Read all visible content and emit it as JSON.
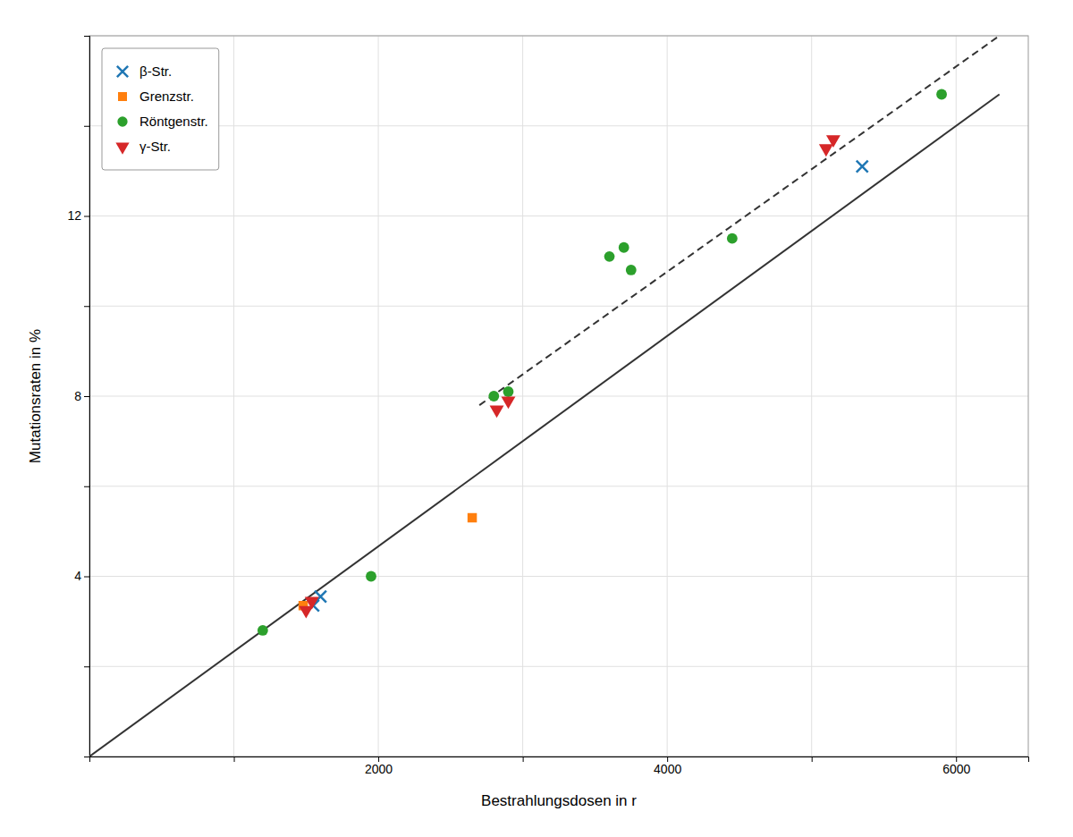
{
  "chart_data": {
    "type": "scatter",
    "xlabel": "Bestrahlungsdosen in r",
    "ylabel": "Mutationsraten in %",
    "xlim": [
      0,
      6500
    ],
    "ylim": [
      0,
      16
    ],
    "xticks": [
      {
        "value": 0,
        "label": null
      },
      {
        "value": 1000,
        "label": null
      },
      2000,
      {
        "value": 3000,
        "label": null
      },
      4000,
      {
        "value": 5000,
        "label": null
      },
      6000
    ],
    "yticks": [
      {
        "value": 0,
        "label": null
      },
      {
        "value": 2,
        "label": null
      },
      4,
      {
        "value": 6,
        "label": null
      },
      8,
      {
        "value": 10,
        "label": null
      },
      12,
      {
        "value": 14,
        "label": null
      },
      {
        "value": 16,
        "label": null
      }
    ],
    "grid": true,
    "legend": "upper left",
    "series": [
      {
        "name": "β-Str.",
        "type": "scatter",
        "marker": "x",
        "x": [
          1550,
          1600,
          5350
        ],
        "values": [
          3.35,
          3.55,
          13.1
        ]
      },
      {
        "name": "Grenzstr.",
        "type": "scatter",
        "marker": "square",
        "x": [
          1480,
          2650
        ],
        "values": [
          3.35,
          5.3
        ]
      },
      {
        "name": "Röntgenstr.",
        "type": "scatter",
        "marker": "circle",
        "x": [
          1200,
          1950,
          2800,
          2900,
          3600,
          3700,
          3750,
          4450,
          5900
        ],
        "values": [
          2.8,
          4.0,
          8.0,
          8.1,
          11.1,
          11.3,
          10.8,
          11.5,
          14.7
        ]
      },
      {
        "name": "γ-Str.",
        "type": "scatter",
        "marker": "triangle-down",
        "x": [
          1500,
          1540,
          2820,
          2900,
          5100,
          5150
        ],
        "values": [
          3.25,
          3.45,
          7.7,
          7.9,
          13.5,
          13.7
        ]
      },
      {
        "type": "line",
        "line_style": "solid",
        "x": [
          0,
          6300
        ],
        "values": [
          0,
          14.7
        ]
      },
      {
        "type": "line",
        "line_style": "dashed",
        "x": [
          2700,
          6300
        ],
        "values": [
          7.8,
          16.0
        ]
      }
    ]
  }
}
